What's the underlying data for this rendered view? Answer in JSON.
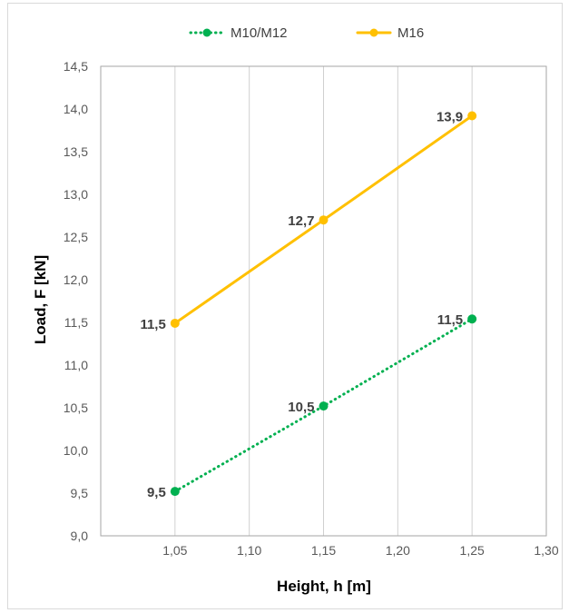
{
  "chart_data": {
    "type": "line",
    "title": "",
    "xlabel": "Height, h [m]",
    "ylabel": "Load, F [kN]",
    "xlim": [
      1.0,
      1.3
    ],
    "ylim": [
      9.0,
      14.5
    ],
    "x_ticks": [
      "1,05",
      "1,10",
      "1,15",
      "1,20",
      "1,25",
      "1,30"
    ],
    "x_tick_values": [
      1.05,
      1.1,
      1.15,
      1.2,
      1.25,
      1.3
    ],
    "y_ticks": [
      "9,0",
      "9,5",
      "10,0",
      "10,5",
      "11,0",
      "11,5",
      "12,0",
      "12,5",
      "13,0",
      "13,5",
      "14,0",
      "14,5"
    ],
    "y_tick_values": [
      9.0,
      9.5,
      10.0,
      10.5,
      11.0,
      11.5,
      12.0,
      12.5,
      13.0,
      13.5,
      14.0,
      14.5
    ],
    "grid": "vertical",
    "legend_position": "top",
    "series": [
      {
        "name": "M10/M12",
        "color": "#00b050",
        "line_style": "dotted",
        "x": [
          1.05,
          1.15,
          1.25
        ],
        "y": [
          9.52,
          10.52,
          11.54
        ],
        "labels": [
          "9,5",
          "10,5",
          "11,5"
        ]
      },
      {
        "name": "M16",
        "color": "#ffc000",
        "line_style": "solid",
        "x": [
          1.05,
          1.15,
          1.25
        ],
        "y": [
          11.49,
          12.7,
          13.92
        ],
        "labels": [
          "11,5",
          "12,7",
          "13,9"
        ]
      }
    ]
  }
}
